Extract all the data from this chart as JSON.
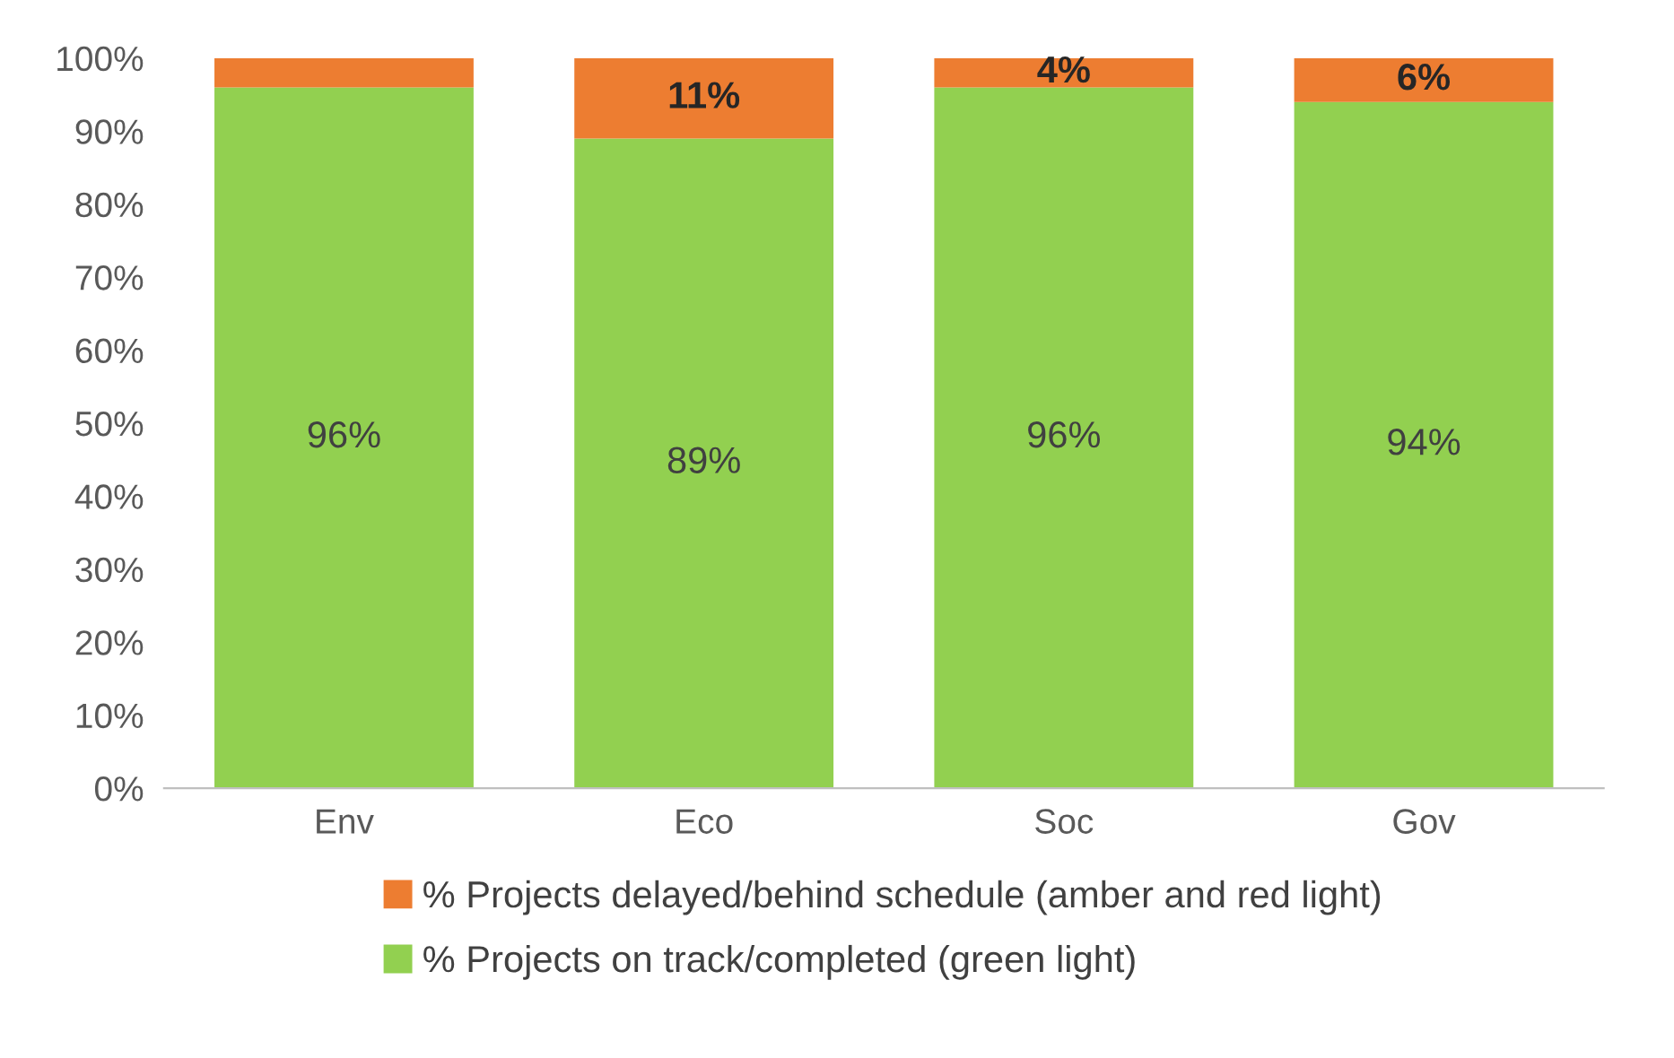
{
  "chart_data": {
    "type": "bar",
    "stacked": true,
    "categories": [
      "Env",
      "Eco",
      "Soc",
      "Gov"
    ],
    "series": [
      {
        "name": "% Projects on track/completed (green light)",
        "color": "#92d050",
        "values": [
          96,
          89,
          96,
          94
        ],
        "value_labels": [
          "96%",
          "89%",
          "96%",
          "94%"
        ]
      },
      {
        "name": "% Projects delayed/behind schedule (amber and red light)",
        "color": "#ed7d31",
        "values": [
          4,
          11,
          4,
          6
        ],
        "value_labels": [
          null,
          "11%",
          "4%",
          "6%"
        ]
      }
    ],
    "ylim": [
      0,
      100
    ],
    "yticks": [
      {
        "value": 0,
        "label": "0%"
      },
      {
        "value": 10,
        "label": "10%"
      },
      {
        "value": 20,
        "label": "20%"
      },
      {
        "value": 30,
        "label": "30%"
      },
      {
        "value": 40,
        "label": "40%"
      },
      {
        "value": 50,
        "label": "50%"
      },
      {
        "value": 60,
        "label": "60%"
      },
      {
        "value": 70,
        "label": "70%"
      },
      {
        "value": 80,
        "label": "80%"
      },
      {
        "value": 90,
        "label": "90%"
      },
      {
        "value": 100,
        "label": "100%"
      }
    ],
    "grid": false,
    "legend": "bottom"
  }
}
